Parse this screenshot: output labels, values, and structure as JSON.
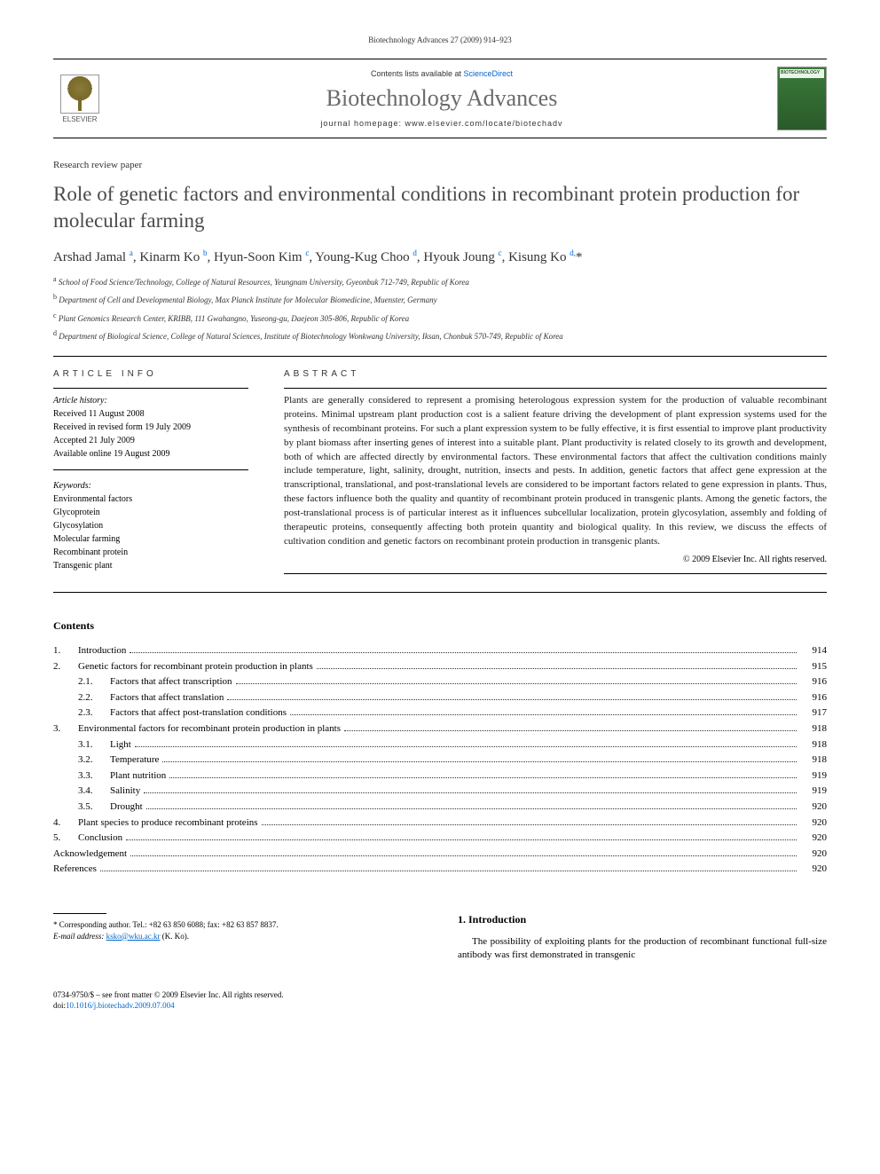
{
  "header": {
    "citation": "Biotechnology Advances 27 (2009) 914–923",
    "contents_available": "Contents lists available at ",
    "sciencedirect": "ScienceDirect",
    "journal_title": "Biotechnology Advances",
    "homepage_label": "journal homepage: www.elsevier.com/locate/biotechadv",
    "elsevier_label": "ELSEVIER",
    "cover_label": "BIOTECHNOLOGY"
  },
  "article": {
    "type": "Research review paper",
    "title": "Role of genetic factors and environmental conditions in recombinant protein production for molecular farming",
    "authors_html": "Arshad Jamal <sup>a</sup>, Kinarm Ko <sup>b</sup>, Hyun-Soon Kim <sup>c</sup>, Young-Kug Choo <sup>d</sup>, Hyouk Joung <sup>c</sup>, Kisung Ko <sup>d,</sup>*",
    "affiliations": [
      {
        "sup": "a",
        "text": "School of Food Science/Technology, College of Natural Resources, Yeungnam University, Gyeonbuk 712-749, Republic of Korea"
      },
      {
        "sup": "b",
        "text": "Department of Cell and Developmental Biology, Max Planck Institute for Molecular Biomedicine, Muenster, Germany"
      },
      {
        "sup": "c",
        "text": "Plant Genomics Research Center, KRIBB, 111 Gwahangno, Yuseong-gu, Daejeon 305-806, Republic of Korea"
      },
      {
        "sup": "d",
        "text": "Department of Biological Science, College of Natural Sciences, Institute of Biotechnology Wonkwang University, Iksan, Chonbuk 570-749, Republic of Korea"
      }
    ]
  },
  "info": {
    "header": "ARTICLE INFO",
    "history_label": "Article history:",
    "history": [
      "Received 11 August 2008",
      "Received in revised form 19 July 2009",
      "Accepted 21 July 2009",
      "Available online 19 August 2009"
    ],
    "keywords_label": "Keywords:",
    "keywords": [
      "Environmental factors",
      "Glycoprotein",
      "Glycosylation",
      "Molecular farming",
      "Recombinant protein",
      "Transgenic plant"
    ]
  },
  "abstract": {
    "header": "ABSTRACT",
    "text": "Plants are generally considered to represent a promising heterologous expression system for the production of valuable recombinant proteins. Minimal upstream plant production cost is a salient feature driving the development of plant expression systems used for the synthesis of recombinant proteins. For such a plant expression system to be fully effective, it is first essential to improve plant productivity by plant biomass after inserting genes of interest into a suitable plant. Plant productivity is related closely to its growth and development, both of which are affected directly by environmental factors. These environmental factors that affect the cultivation conditions mainly include temperature, light, salinity, drought, nutrition, insects and pests. In addition, genetic factors that affect gene expression at the transcriptional, translational, and post-translational levels are considered to be important factors related to gene expression in plants. Thus, these factors influence both the quality and quantity of recombinant protein produced in transgenic plants. Among the genetic factors, the post-translational process is of particular interest as it influences subcellular localization, protein glycosylation, assembly and folding of therapeutic proteins, consequently affecting both protein quantity and biological quality. In this review, we discuss the effects of cultivation condition and genetic factors on recombinant protein production in transgenic plants.",
    "copyright": "© 2009 Elsevier Inc. All rights reserved."
  },
  "contents": {
    "header": "Contents",
    "entries": [
      {
        "level": 1,
        "num": "1.",
        "label": "Introduction",
        "page": "914"
      },
      {
        "level": 1,
        "num": "2.",
        "label": "Genetic factors for recombinant protein production in plants",
        "page": "915"
      },
      {
        "level": 2,
        "num": "2.1.",
        "label": "Factors that affect transcription",
        "page": "916"
      },
      {
        "level": 2,
        "num": "2.2.",
        "label": "Factors that affect translation",
        "page": "916"
      },
      {
        "level": 2,
        "num": "2.3.",
        "label": "Factors that affect post-translation conditions",
        "page": "917"
      },
      {
        "level": 1,
        "num": "3.",
        "label": "Environmental factors for recombinant protein production in plants",
        "page": "918"
      },
      {
        "level": 2,
        "num": "3.1.",
        "label": "Light",
        "page": "918"
      },
      {
        "level": 2,
        "num": "3.2.",
        "label": "Temperature",
        "page": "918"
      },
      {
        "level": 2,
        "num": "3.3.",
        "label": "Plant nutrition",
        "page": "919"
      },
      {
        "level": 2,
        "num": "3.4.",
        "label": "Salinity",
        "page": "919"
      },
      {
        "level": 2,
        "num": "3.5.",
        "label": "Drought",
        "page": "920"
      },
      {
        "level": 1,
        "num": "4.",
        "label": "Plant species to produce recombinant proteins",
        "page": "920"
      },
      {
        "level": 1,
        "num": "5.",
        "label": "Conclusion",
        "page": "920"
      },
      {
        "level": 0,
        "num": "",
        "label": "Acknowledgement",
        "page": "920"
      },
      {
        "level": 0,
        "num": "",
        "label": "References",
        "page": "920"
      }
    ]
  },
  "corresponding": {
    "star": "*",
    "text": "Corresponding author. Tel.: +82 63 850 6088; fax: +82 63 857 8837.",
    "email_label": "E-mail address:",
    "email": "ksko@wku.ac.kr",
    "email_suffix": "(K. Ko)."
  },
  "intro": {
    "header": "1. Introduction",
    "text": "The possibility of exploiting plants for the production of recombinant functional full-size antibody was first demonstrated in transgenic"
  },
  "footer": {
    "line1": "0734-9750/$ – see front matter © 2009 Elsevier Inc. All rights reserved.",
    "doi_label": "doi:",
    "doi": "10.1016/j.biotechadv.2009.07.004"
  },
  "colors": {
    "link": "#0066cc",
    "title_gray": "#6a6a6a",
    "text": "#1a1a1a"
  }
}
